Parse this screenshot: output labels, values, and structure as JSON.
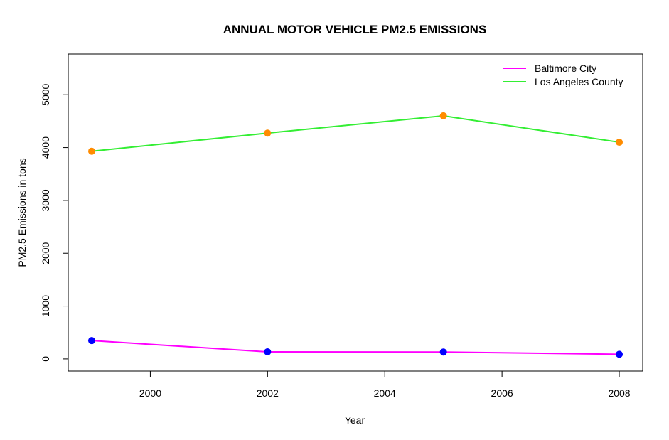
{
  "chart_data": {
    "type": "line",
    "title": "ANNUAL MOTOR VEHICLE PM2.5 EMISSIONS",
    "xlabel": "Year",
    "ylabel": "PM2.5 Emissions in tons",
    "x": [
      1999,
      2002,
      2005,
      2008
    ],
    "xlim": [
      1998.6,
      2008.4
    ],
    "ylim": [
      -230,
      5770
    ],
    "x_ticks": [
      "2000",
      "2002",
      "2004",
      "2006",
      "2008"
    ],
    "y_ticks": [
      "0",
      "1000",
      "2000",
      "3000",
      "4000",
      "5000"
    ],
    "grid": false,
    "legend_position": "top-right",
    "series": [
      {
        "name": "Baltimore City",
        "values": [
          346,
          134,
          130,
          88
        ],
        "line_color": "#ff00ff",
        "marker_color": "#0000ff"
      },
      {
        "name": "Los Angeles County",
        "values": [
          3931,
          4274,
          4601,
          4101
        ],
        "line_color": "#33ee33",
        "marker_color": "#ff8c00"
      }
    ]
  }
}
